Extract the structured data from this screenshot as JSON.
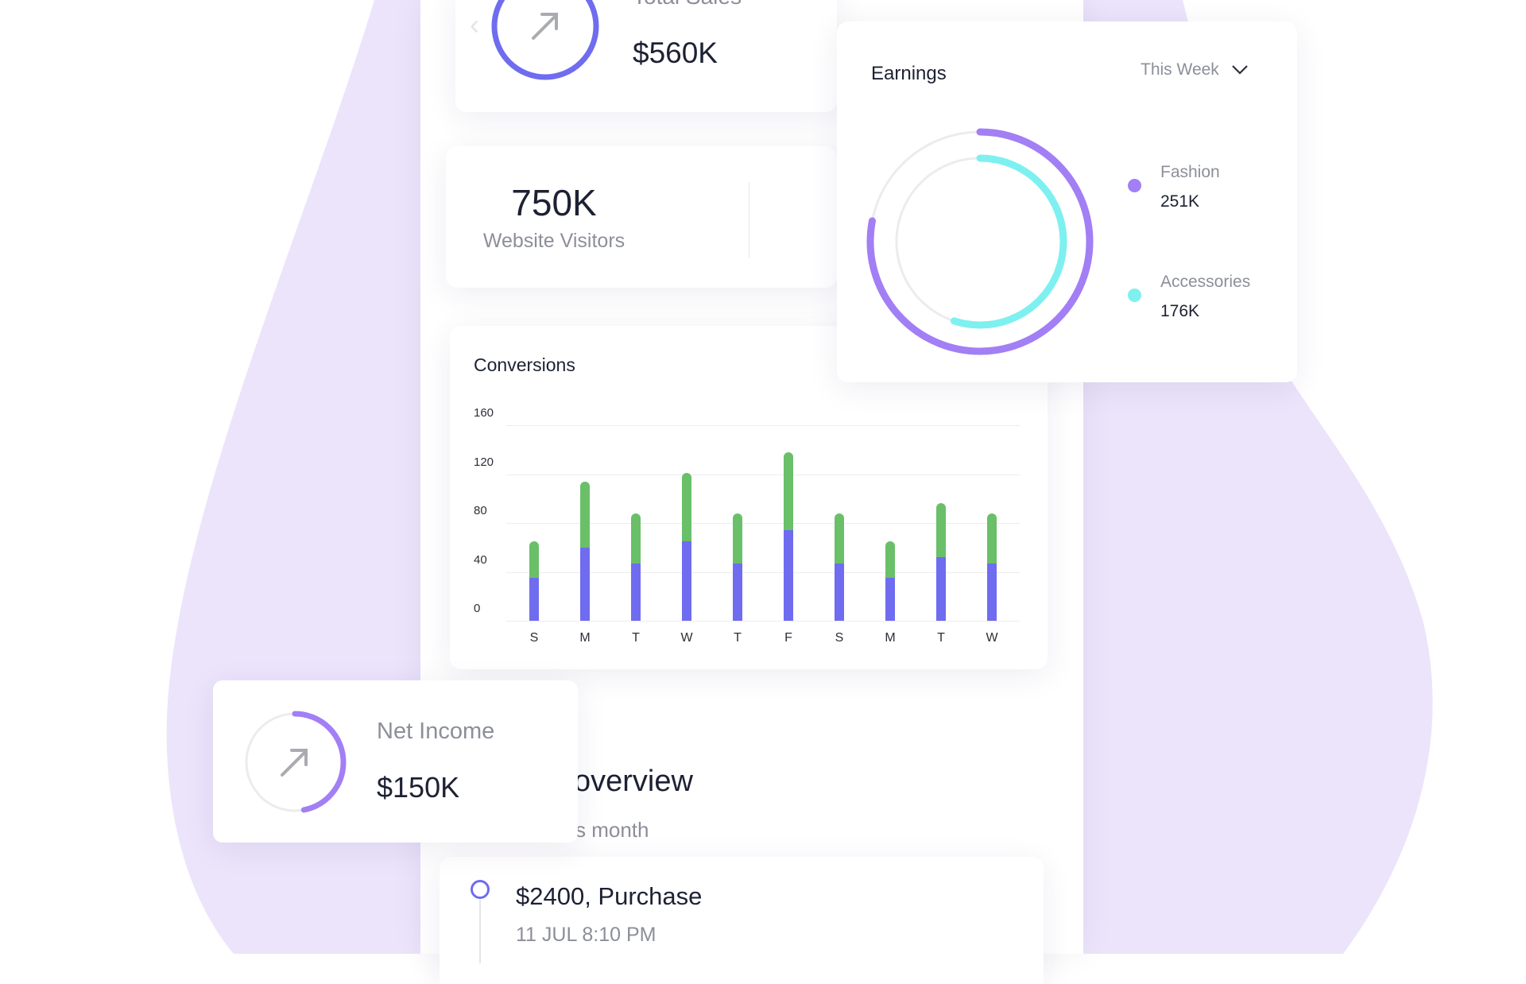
{
  "colors": {
    "blob": "#ece4fb",
    "primary": "#6f6cf0",
    "purple": "#a27ff4",
    "cyan": "#7ef0f0",
    "green": "#6abf69",
    "ring_track": "#ececef"
  },
  "total_sales": {
    "label": "Total Sales",
    "value": "$560K",
    "icon": "arrow-up-right-icon",
    "progress": 1.0
  },
  "visitors": {
    "value": "750K",
    "label": "Website Visitors"
  },
  "conversions": {
    "title": "Conversions"
  },
  "earnings": {
    "title": "Earnings",
    "period": "This Week",
    "items": [
      {
        "name": "Fashion",
        "value": "251K",
        "color": "#a27ff4",
        "progress": 0.78
      },
      {
        "name": "Accessories",
        "value": "176K",
        "color": "#7ef0f0",
        "progress": 0.55
      }
    ]
  },
  "net_income": {
    "label": "Net Income",
    "value": "$150K",
    "icon": "arrow-up-right-icon",
    "progress": 0.47
  },
  "overview": {
    "title_visible": "overview",
    "subtitle_visible": "s month"
  },
  "timeline": [
    {
      "title": "$2400, Purchase",
      "time": "11 JUL 8:10 PM"
    }
  ],
  "chart_data": {
    "type": "bar",
    "stacked": true,
    "title": "Conversions",
    "categories": [
      "S",
      "M",
      "T",
      "W",
      "T",
      "F",
      "S",
      "M",
      "T",
      "W"
    ],
    "series": [
      {
        "color": "#6f6cf0",
        "values": [
          35,
          60,
          47,
          65,
          47,
          74,
          47,
          35,
          52,
          47
        ]
      },
      {
        "color": "#6abf69",
        "values": [
          30,
          54,
          41,
          56,
          41,
          64,
          41,
          30,
          44,
          41
        ]
      }
    ],
    "yticks": [
      0,
      40,
      80,
      120,
      160
    ],
    "ylim": [
      0,
      160
    ],
    "grid": true
  }
}
